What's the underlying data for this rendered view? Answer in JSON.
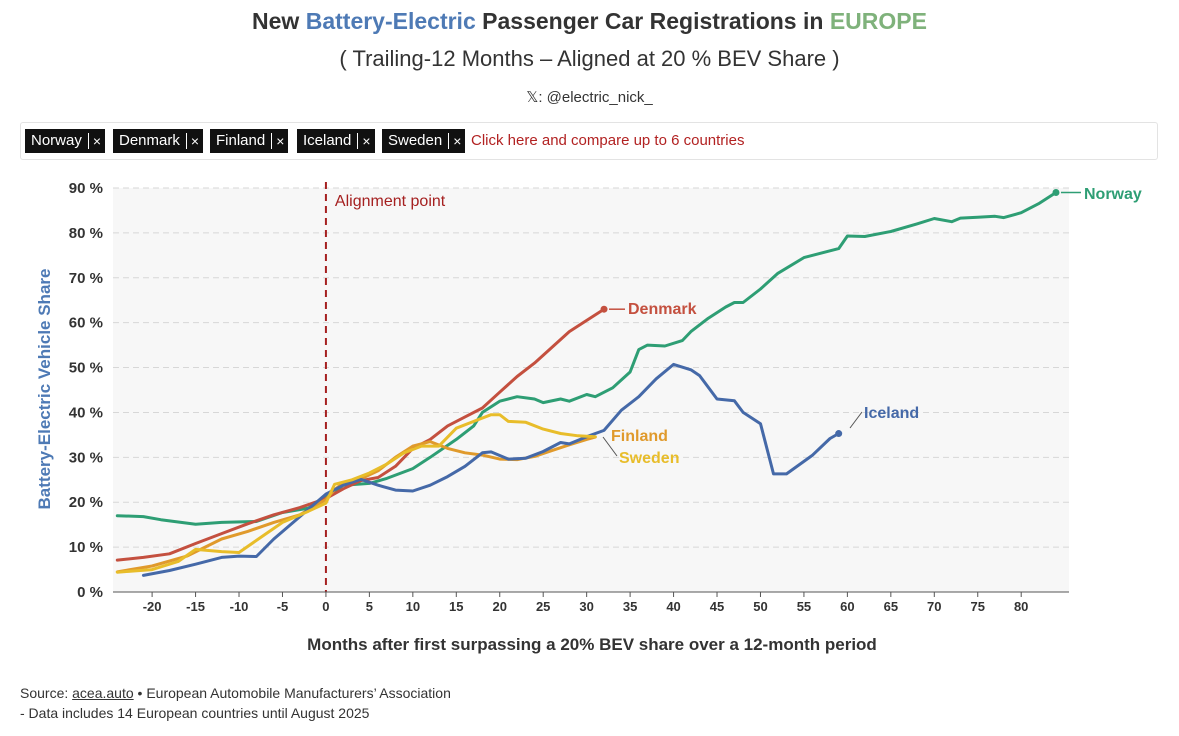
{
  "header": {
    "title_prefix": "New ",
    "title_highlight1": "Battery-Electric",
    "title_middle": " Passenger Car Registrations in ",
    "title_highlight2": "EUROPE",
    "subtitle": "( Trailing-12 Months – Aligned at 20 % BEV Share )",
    "credit": "𝕏: @electric_nick_"
  },
  "selector": {
    "chips": [
      {
        "label": "Norway",
        "remove": "×"
      },
      {
        "label": "Denmark",
        "remove": "×"
      },
      {
        "label": "Finland",
        "remove": "×"
      },
      {
        "label": "Iceland",
        "remove": "×"
      },
      {
        "label": "Sweden",
        "remove": "×"
      }
    ],
    "compare_link": "Click here and compare up to 6 countries"
  },
  "footer": {
    "source_label": "Source: ",
    "source_link": "acea.auto",
    "source_rest": " • European Automobile Manufacturers’ Association",
    "note": "- Data includes 14 European countries until August 2025"
  },
  "colors": {
    "norway": "#2e9e74",
    "denmark": "#c4503f",
    "finland": "#e09a2c",
    "iceland": "#4569a8",
    "sweden": "#e8bd2a",
    "alignment": "#a52020",
    "plot_bg": "#f7f7f7",
    "ylabel": "#4e7ab5"
  },
  "chart_data": {
    "type": "line",
    "title": "New Battery-Electric Passenger Car Registrations in EUROPE",
    "xlabel": "Months after first surpassing a 20% BEV share over a 12-month period",
    "ylabel": "Battery-Electric Vehicle Share",
    "xlim": [
      -24.5,
      85.5
    ],
    "ylim": [
      0,
      90
    ],
    "xticks": [
      -20,
      -15,
      -10,
      -5,
      0,
      5,
      10,
      15,
      20,
      25,
      30,
      35,
      40,
      45,
      50,
      55,
      60,
      65,
      70,
      75,
      80
    ],
    "xtick_labels": [
      "-20",
      "-15",
      "-10",
      "-5",
      "0",
      "5",
      "10",
      "15",
      "20",
      "25",
      "30",
      "35",
      "40",
      "45",
      "50",
      "55",
      "60",
      "65",
      "70",
      "75",
      "80"
    ],
    "yticks": [
      0,
      10,
      20,
      30,
      40,
      50,
      60,
      70,
      80,
      90
    ],
    "ytick_labels": [
      "0 %",
      "10 %",
      "20 %",
      "30 %",
      "40 %",
      "50 %",
      "60 %",
      "70 %",
      "80 %",
      "90 %"
    ],
    "grid": true,
    "alignment": {
      "x": 0,
      "label": "Alignment point"
    },
    "series": [
      {
        "name": "Norway",
        "label": "Norway",
        "color_key": "norway",
        "end_marker": true,
        "points": [
          [
            -24,
            17
          ],
          [
            -21,
            16.8
          ],
          [
            -19,
            16.1
          ],
          [
            -15,
            15.1
          ],
          [
            -12,
            15.5
          ],
          [
            -8,
            15.7
          ],
          [
            -5,
            17.7
          ],
          [
            -2,
            18.7
          ],
          [
            0,
            21
          ],
          [
            2,
            23.8
          ],
          [
            5,
            24.2
          ],
          [
            7,
            25.3
          ],
          [
            10,
            27.5
          ],
          [
            12,
            30
          ],
          [
            15,
            34
          ],
          [
            17,
            37
          ],
          [
            18,
            40
          ],
          [
            20,
            42.5
          ],
          [
            22,
            43.5
          ],
          [
            24,
            43
          ],
          [
            25,
            42.2
          ],
          [
            27,
            43
          ],
          [
            28,
            42.5
          ],
          [
            30,
            44
          ],
          [
            31,
            43.5
          ],
          [
            33,
            45.5
          ],
          [
            35,
            49
          ],
          [
            36,
            54
          ],
          [
            37,
            55
          ],
          [
            39,
            54.8
          ],
          [
            41,
            56
          ],
          [
            42,
            58
          ],
          [
            44,
            61
          ],
          [
            46,
            63.5
          ],
          [
            47,
            64.5
          ],
          [
            48,
            64.5
          ],
          [
            50,
            67.5
          ],
          [
            52,
            71
          ],
          [
            55,
            74.5
          ],
          [
            57,
            75.5
          ],
          [
            59,
            76.5
          ],
          [
            60,
            79.3
          ],
          [
            62,
            79.2
          ],
          [
            65,
            80.3
          ],
          [
            68,
            82
          ],
          [
            70,
            83.2
          ],
          [
            72,
            82.5
          ],
          [
            73,
            83.3
          ],
          [
            75,
            83.5
          ],
          [
            77,
            83.7
          ],
          [
            78,
            83.4
          ],
          [
            80,
            84.5
          ],
          [
            82,
            86.5
          ],
          [
            84,
            89
          ]
        ]
      },
      {
        "name": "Denmark",
        "label": "Denmark",
        "color_key": "denmark",
        "end_marker": true,
        "points": [
          [
            -24,
            7.1
          ],
          [
            -21,
            7.7
          ],
          [
            -18,
            8.5
          ],
          [
            -15,
            10.8
          ],
          [
            -12,
            13
          ],
          [
            -9,
            15.2
          ],
          [
            -6,
            17.2
          ],
          [
            -3,
            18.8
          ],
          [
            0,
            20.8
          ],
          [
            2,
            23
          ],
          [
            4,
            24.8
          ],
          [
            6,
            25.5
          ],
          [
            8,
            28
          ],
          [
            10,
            32
          ],
          [
            12,
            34
          ],
          [
            14,
            37
          ],
          [
            16,
            39
          ],
          [
            18,
            41
          ],
          [
            20,
            44.5
          ],
          [
            22,
            48
          ],
          [
            24,
            51
          ],
          [
            26,
            54.5
          ],
          [
            28,
            58
          ],
          [
            30,
            60.5
          ],
          [
            32,
            63
          ]
        ]
      },
      {
        "name": "Finland",
        "label": "Finland",
        "color_key": "finland",
        "end_marker": false,
        "points": [
          [
            -24,
            4.5
          ],
          [
            -20,
            5.8
          ],
          [
            -16,
            8
          ],
          [
            -12,
            11.8
          ],
          [
            -9,
            13.5
          ],
          [
            -6,
            15.5
          ],
          [
            -3,
            17.2
          ],
          [
            0,
            20.6
          ],
          [
            1,
            22.8
          ],
          [
            2,
            24.3
          ],
          [
            4,
            25.2
          ],
          [
            6,
            27
          ],
          [
            8,
            30
          ],
          [
            10,
            32.5
          ],
          [
            12,
            33.5
          ],
          [
            14,
            32
          ],
          [
            16,
            31
          ],
          [
            18,
            30.5
          ],
          [
            20,
            29.6
          ],
          [
            22,
            29.5
          ],
          [
            24,
            30.2
          ],
          [
            26,
            31.5
          ],
          [
            28,
            32.8
          ],
          [
            30,
            34
          ],
          [
            31,
            34.5
          ]
        ]
      },
      {
        "name": "Iceland",
        "label": "Iceland",
        "color_key": "iceland",
        "end_marker": true,
        "points": [
          [
            -21,
            3.7
          ],
          [
            -18,
            4.8
          ],
          [
            -15,
            6.2
          ],
          [
            -12,
            7.7
          ],
          [
            -10,
            8
          ],
          [
            -8,
            7.9
          ],
          [
            -6,
            11.8
          ],
          [
            -3,
            16.8
          ],
          [
            0,
            21.8
          ],
          [
            2,
            23.8
          ],
          [
            4,
            25.1
          ],
          [
            6,
            23.8
          ],
          [
            8,
            22.7
          ],
          [
            10,
            22.5
          ],
          [
            12,
            23.8
          ],
          [
            14,
            25.7
          ],
          [
            16,
            28
          ],
          [
            18,
            31
          ],
          [
            19,
            31.2
          ],
          [
            21,
            29.6
          ],
          [
            23,
            29.8
          ],
          [
            25,
            31.3
          ],
          [
            27,
            33.3
          ],
          [
            28,
            33
          ],
          [
            30,
            34.6
          ],
          [
            32,
            36
          ],
          [
            34,
            40.5
          ],
          [
            36,
            43.5
          ],
          [
            38,
            47.5
          ],
          [
            40,
            50.7
          ],
          [
            42,
            49.5
          ],
          [
            43,
            48.2
          ],
          [
            45,
            43
          ],
          [
            47,
            42.6
          ],
          [
            48,
            40
          ],
          [
            50,
            37.5
          ],
          [
            51,
            30
          ],
          [
            51.5,
            26.3
          ],
          [
            53,
            26.3
          ],
          [
            56,
            30.5
          ],
          [
            58,
            34.2
          ],
          [
            59,
            35.3
          ]
        ]
      },
      {
        "name": "Sweden",
        "label": "Sweden",
        "color_key": "sweden",
        "end_marker": false,
        "points": [
          [
            -24,
            4.4
          ],
          [
            -20,
            5
          ],
          [
            -17,
            6.8
          ],
          [
            -15,
            9.5
          ],
          [
            -12,
            9
          ],
          [
            -10,
            8.8
          ],
          [
            -8,
            11.5
          ],
          [
            -5,
            15.5
          ],
          [
            -2,
            18
          ],
          [
            0,
            19.8
          ],
          [
            1,
            24
          ],
          [
            3,
            25
          ],
          [
            5,
            26.5
          ],
          [
            7,
            28.5
          ],
          [
            9,
            31
          ],
          [
            11,
            32.5
          ],
          [
            13,
            32.5
          ],
          [
            15,
            36.5
          ],
          [
            17,
            38
          ],
          [
            19,
            39.5
          ],
          [
            20,
            39.5
          ],
          [
            21,
            38
          ],
          [
            23,
            37.8
          ],
          [
            25,
            36.3
          ],
          [
            27,
            35.3
          ],
          [
            29,
            34.8
          ],
          [
            31,
            34.6
          ]
        ]
      }
    ]
  }
}
